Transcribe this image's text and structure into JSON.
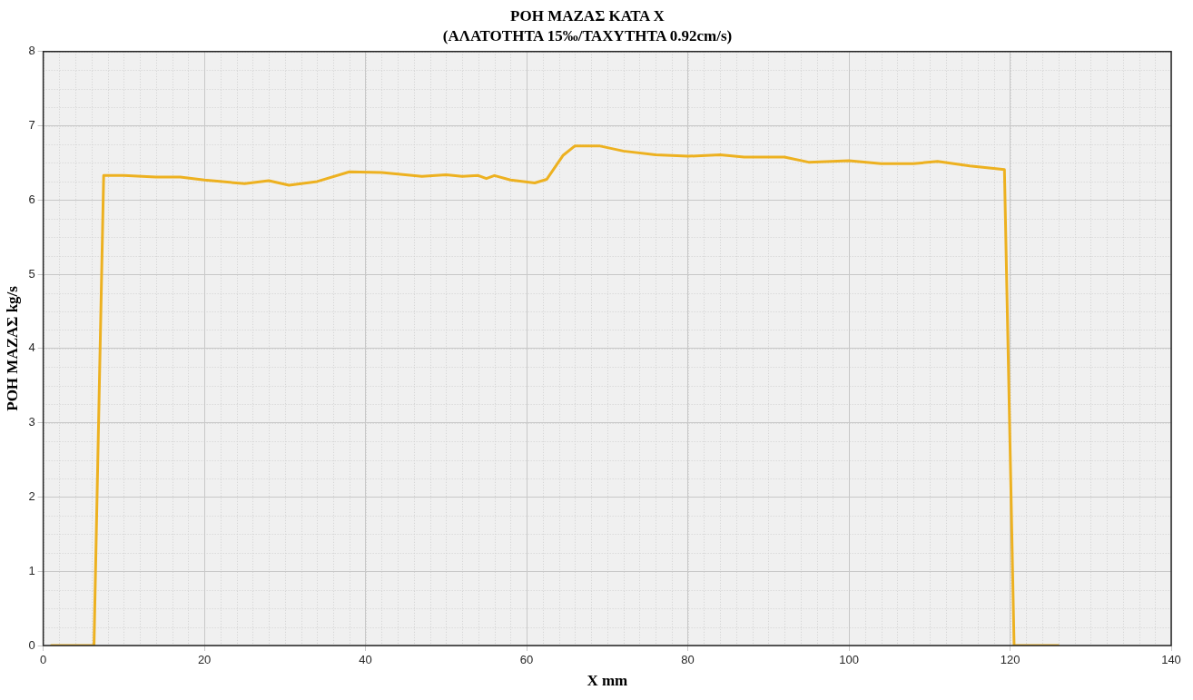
{
  "chart_data": {
    "type": "line",
    "title": "ΡΟΗ ΜΑΖΑΣ ΚΑΤΑ Χ",
    "subtitle": "(ΑΛΑΤΟΤΗΤΑ 15‰/ΤΑΧΥΤΗΤΑ 0.92cm/s)",
    "xlabel": "X mm",
    "ylabel": "ΡΟΗ ΜΑΖΑΣ kg/s",
    "xlim": [
      0,
      140
    ],
    "xticks": [
      0,
      20,
      40,
      60,
      80,
      100,
      120,
      140
    ],
    "ylim": [
      0,
      8
    ],
    "yticks": [
      0,
      1,
      2,
      3,
      4,
      5,
      6,
      7,
      8
    ],
    "grid": true,
    "marker": "none",
    "line_style": "solid",
    "series": [
      {
        "color": "#edb120",
        "x": [
          1,
          6.3,
          7.5,
          10,
          14,
          17,
          20,
          25,
          28,
          30.5,
          34,
          38,
          42,
          47,
          50,
          52,
          54,
          55,
          56,
          58,
          61,
          62.5,
          64.5,
          66,
          69,
          72,
          76,
          80,
          84,
          87,
          92,
          95,
          100,
          104,
          108,
          111,
          115,
          119.3,
          120.5,
          126
        ],
        "values": [
          0,
          0,
          6.33,
          6.33,
          6.31,
          6.31,
          6.27,
          6.22,
          6.26,
          6.2,
          6.25,
          6.38,
          6.37,
          6.32,
          6.34,
          6.32,
          6.33,
          6.29,
          6.33,
          6.27,
          6.23,
          6.28,
          6.6,
          6.73,
          6.73,
          6.66,
          6.61,
          6.59,
          6.61,
          6.58,
          6.58,
          6.51,
          6.53,
          6.49,
          6.49,
          6.52,
          6.46,
          6.41,
          0,
          0
        ]
      }
    ]
  }
}
